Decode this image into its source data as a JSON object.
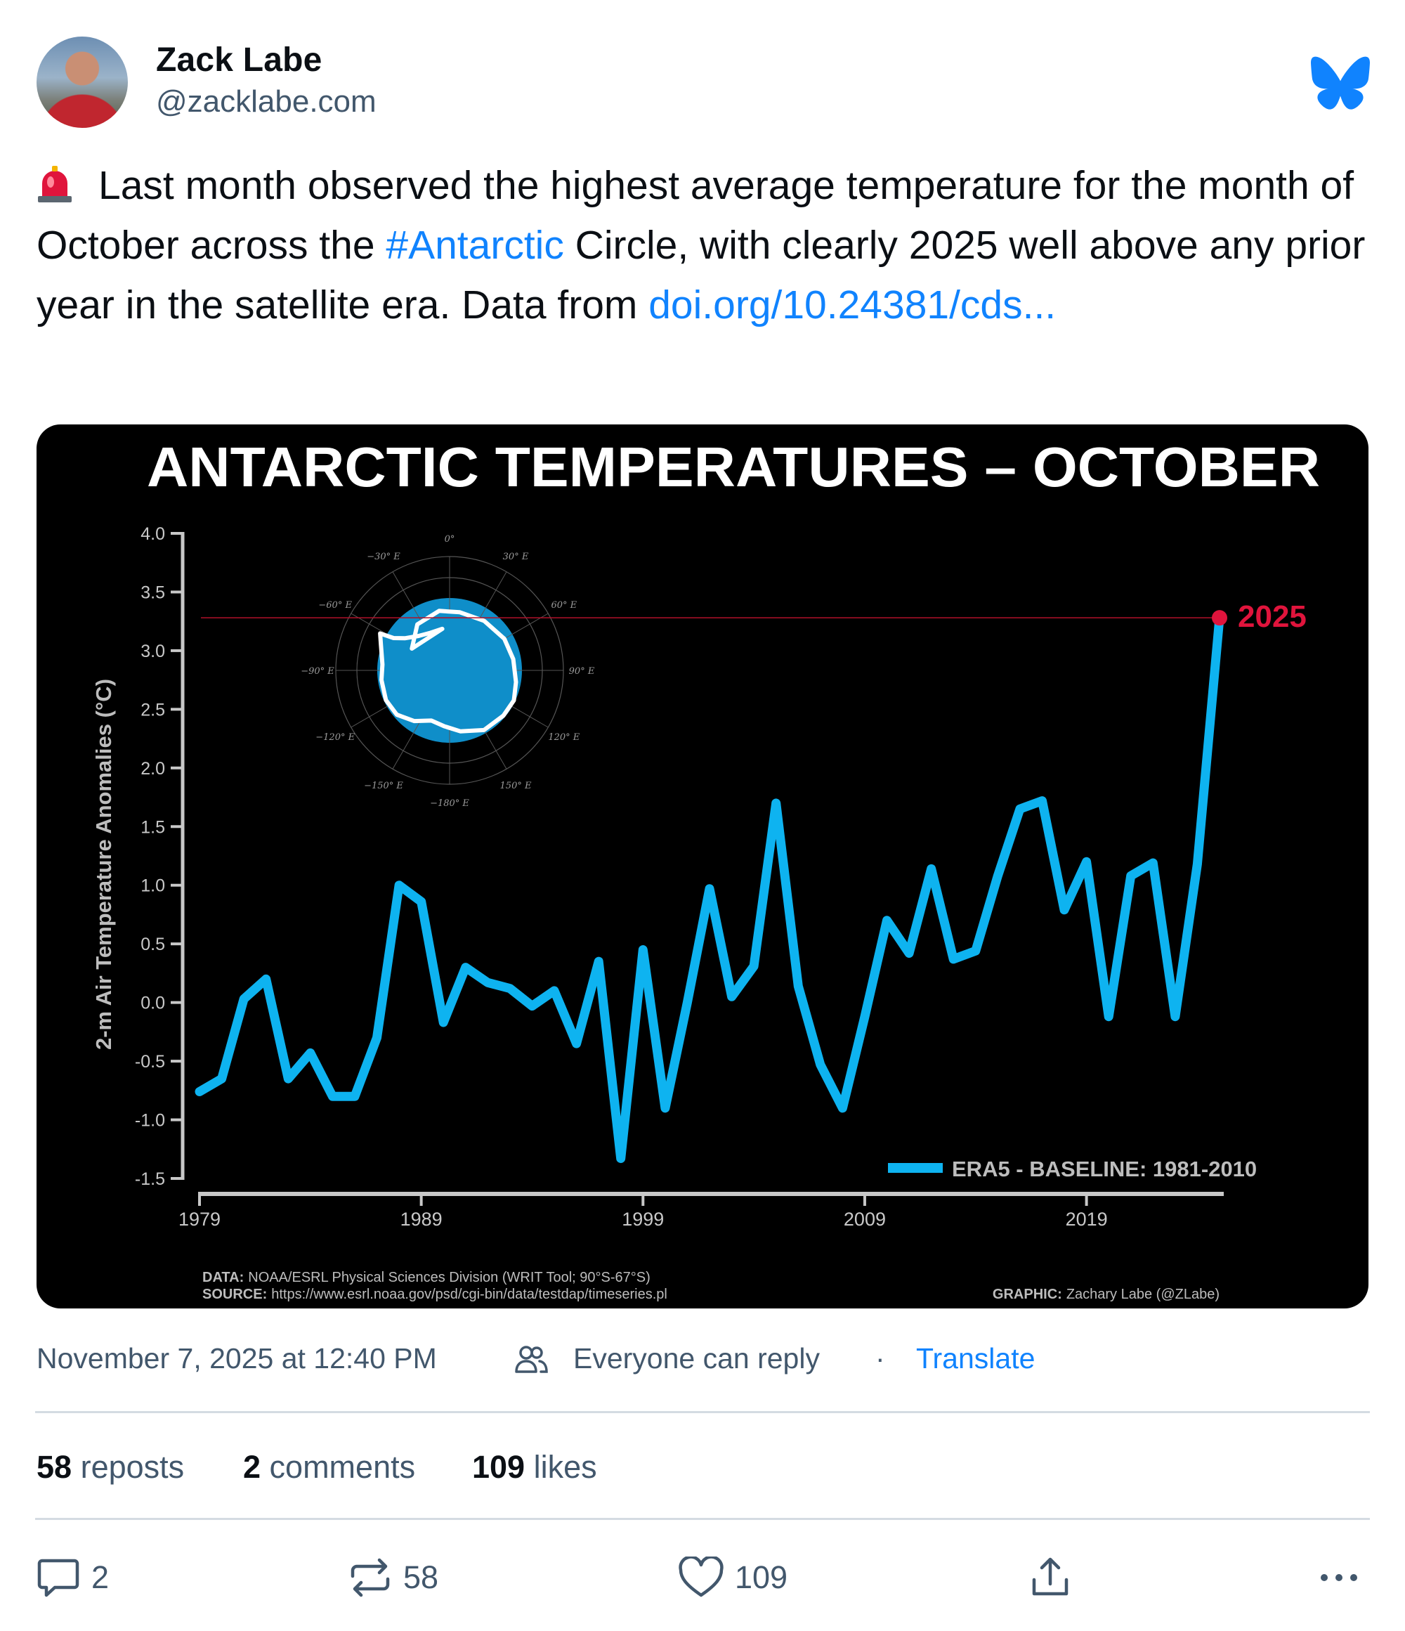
{
  "author": {
    "name": "Zack Labe",
    "handle": "@zacklabe.com"
  },
  "post": {
    "text_before": "Last month observed the highest average temperature for the month of October across the ",
    "hashtag": "#Antarctic",
    "text_after": " Circle, with clearly 2025 well above any prior year in the satellite era. Data from ",
    "link": "doi.org/10.24381/cds...",
    "emoji": "siren-emoji"
  },
  "meta": {
    "timestamp": "November 7, 2025 at 12:40 PM",
    "reply_setting": "Everyone can reply",
    "separator": "·",
    "translate": "Translate"
  },
  "counts": {
    "reposts_n": "58",
    "reposts_label": "reposts",
    "comments_n": "2",
    "comments_label": "comments",
    "likes_n": "109",
    "likes_label": "likes"
  },
  "actions": {
    "reply_count": "2",
    "repost_count": "58",
    "like_count": "109"
  },
  "icons": {
    "logo": "bluesky-butterfly-icon",
    "reply": "speech-bubble-icon",
    "repost": "repost-arrows-icon",
    "like": "heart-icon",
    "share": "share-upload-icon",
    "more": "ellipsis-icon",
    "audience": "people-icon"
  },
  "colors": {
    "brand": "#1083fe",
    "series": "#0eb3f0",
    "highlight": "#e0143c",
    "card_bg": "#000000"
  },
  "chart_data": {
    "type": "line",
    "title": "ANTARCTIC TEMPERATURES – OCTOBER",
    "ylabel": "2-m Air Temperature Anomalies (°C)",
    "xlabel": "",
    "ylim": [
      -1.5,
      4.0
    ],
    "xlim": [
      1979,
      2025
    ],
    "yticks": [
      -1.5,
      -1.0,
      -0.5,
      0.0,
      0.5,
      1.0,
      1.5,
      2.0,
      2.5,
      3.0,
      3.5,
      4.0
    ],
    "ytick_labels": [
      "-1.5",
      "-1.0",
      "-0.5",
      "0.0",
      "0.5",
      "1.0",
      "1.5",
      "2.0",
      "2.5",
      "3.0",
      "3.5",
      "4.0"
    ],
    "xticks": [
      1979,
      1989,
      1999,
      2009,
      2019
    ],
    "xtick_labels": [
      "1979",
      "1989",
      "1999",
      "2009",
      "2019"
    ],
    "series": [
      {
        "name": "ERA5 - BASELINE: 1981-2010",
        "x": [
          1979,
          1980,
          1981,
          1982,
          1983,
          1984,
          1985,
          1986,
          1987,
          1988,
          1989,
          1990,
          1991,
          1992,
          1993,
          1994,
          1995,
          1996,
          1997,
          1998,
          1999,
          2000,
          2001,
          2002,
          2003,
          2004,
          2005,
          2006,
          2007,
          2008,
          2009,
          2010,
          2011,
          2012,
          2013,
          2014,
          2015,
          2016,
          2017,
          2018,
          2019,
          2020,
          2021,
          2022,
          2023,
          2024,
          2025
        ],
        "y": [
          -0.76,
          -0.65,
          0.03,
          0.2,
          -0.65,
          -0.43,
          -0.8,
          -0.8,
          -0.3,
          1.0,
          0.86,
          -0.17,
          0.3,
          0.17,
          0.12,
          -0.03,
          0.1,
          -0.35,
          0.35,
          -1.33,
          0.45,
          -0.9,
          0.0,
          0.97,
          0.05,
          0.31,
          1.7,
          0.14,
          -0.53,
          -0.9,
          -0.12,
          0.7,
          0.42,
          1.14,
          0.37,
          0.44,
          1.08,
          1.65,
          1.72,
          0.79,
          1.2,
          -0.12,
          1.08,
          1.19,
          -0.12,
          1.18,
          3.28
        ]
      }
    ],
    "highlight": {
      "x": 2025,
      "y": 3.28,
      "label": "2025"
    },
    "legend_position": "bottom-right",
    "grid": false,
    "inset_map": {
      "lat_labels": [
        "0°",
        "30° E",
        "60° E",
        "90° E",
        "120° E",
        "150° E",
        "−180° E",
        "−150° E",
        "−120° E",
        "−90° E",
        "−60° E",
        "−30° E"
      ]
    },
    "footer": {
      "data_label": "DATA:",
      "data_text": "NOAA/ESRL Physical Sciences Division (WRIT Tool; 90°S-67°S)",
      "source_label": "SOURCE:",
      "source_text": "https://www.esrl.noaa.gov/psd/cgi-bin/data/testdap/timeseries.pl",
      "graphic_label": "GRAPHIC:",
      "graphic_text": "Zachary Labe (@ZLabe)"
    }
  }
}
